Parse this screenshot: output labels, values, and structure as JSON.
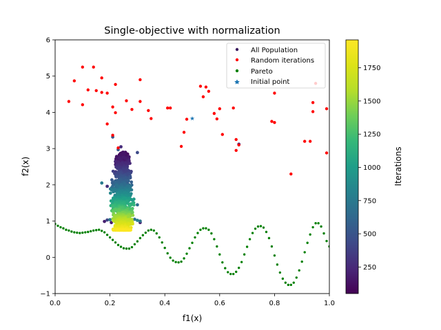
{
  "chart_data": {
    "type": "scatter",
    "title": "Single-objective with normalization",
    "xlabel": "f1(x)",
    "ylabel": "f2(x)",
    "xlim": [
      0,
      1
    ],
    "ylim": [
      -1,
      6
    ],
    "xticks": [
      "0.0",
      "0.2",
      "0.4",
      "0.6",
      "0.8",
      "1.0"
    ],
    "yticks": [
      "−1",
      "0",
      "1",
      "2",
      "3",
      "4",
      "5",
      "6"
    ],
    "grid": false,
    "legend_position": "top-right",
    "legend": [
      "All Population",
      "Random iterations",
      "Pareto",
      "Initial point"
    ],
    "colorbar": {
      "label": "Iterations",
      "range": [
        50,
        1960
      ],
      "ticks": [
        "250",
        "500",
        "750",
        "1000",
        "1250",
        "1500",
        "1750"
      ],
      "colormap": "viridis"
    },
    "series": [
      {
        "name": "Random iterations",
        "color": "#ff0000",
        "marker": "dot",
        "points": [
          [
            0.05,
            4.3
          ],
          [
            0.07,
            4.87
          ],
          [
            0.1,
            4.21
          ],
          [
            0.1,
            5.25
          ],
          [
            0.12,
            4.62
          ],
          [
            0.14,
            5.25
          ],
          [
            0.15,
            4.6
          ],
          [
            0.17,
            4.55
          ],
          [
            0.17,
            4.95
          ],
          [
            0.19,
            3.68
          ],
          [
            0.19,
            4.53
          ],
          [
            0.21,
            4.15
          ],
          [
            0.21,
            3.37
          ],
          [
            0.22,
            3.99
          ],
          [
            0.22,
            4.77
          ],
          [
            0.23,
            3.02
          ],
          [
            0.26,
            4.32
          ],
          [
            0.28,
            4.08
          ],
          [
            0.31,
            4.3
          ],
          [
            0.31,
            4.9
          ],
          [
            0.34,
            4.05
          ],
          [
            0.35,
            3.83
          ],
          [
            0.41,
            4.12
          ],
          [
            0.42,
            4.12
          ],
          [
            0.46,
            3.06
          ],
          [
            0.47,
            3.45
          ],
          [
            0.48,
            3.81
          ],
          [
            0.53,
            4.72
          ],
          [
            0.54,
            4.43
          ],
          [
            0.55,
            4.7
          ],
          [
            0.56,
            4.58
          ],
          [
            0.58,
            3.97
          ],
          [
            0.59,
            3.82
          ],
          [
            0.6,
            4.1
          ],
          [
            0.61,
            3.39
          ],
          [
            0.65,
            4.12
          ],
          [
            0.66,
            3.25
          ],
          [
            0.66,
            2.95
          ],
          [
            0.67,
            3.1
          ],
          [
            0.79,
            3.75
          ],
          [
            0.8,
            3.72
          ],
          [
            0.8,
            4.53
          ],
          [
            0.86,
            2.3
          ],
          [
            0.91,
            3.2
          ],
          [
            0.93,
            3.2
          ],
          [
            0.94,
            4.27
          ],
          [
            0.94,
            4.02
          ],
          [
            0.95,
            4.8
          ],
          [
            0.99,
            4.1
          ],
          [
            0.99,
            2.88
          ]
        ]
      },
      {
        "name": "Pareto",
        "color": "#008000",
        "marker": "dot",
        "points": [
          [
            0.0,
            0.92
          ],
          [
            0.01,
            0.87
          ],
          [
            0.02,
            0.83
          ],
          [
            0.03,
            0.8
          ],
          [
            0.04,
            0.76
          ],
          [
            0.05,
            0.74
          ],
          [
            0.06,
            0.71
          ],
          [
            0.07,
            0.69
          ],
          [
            0.08,
            0.68
          ],
          [
            0.09,
            0.67
          ],
          [
            0.1,
            0.68
          ],
          [
            0.11,
            0.69
          ],
          [
            0.12,
            0.7
          ],
          [
            0.13,
            0.72
          ],
          [
            0.14,
            0.74
          ],
          [
            0.15,
            0.75
          ],
          [
            0.16,
            0.76
          ],
          [
            0.17,
            0.73
          ],
          [
            0.18,
            0.69
          ],
          [
            0.19,
            0.62
          ],
          [
            0.2,
            0.55
          ],
          [
            0.21,
            0.48
          ],
          [
            0.22,
            0.41
          ],
          [
            0.23,
            0.34
          ],
          [
            0.24,
            0.29
          ],
          [
            0.25,
            0.25
          ],
          [
            0.26,
            0.24
          ],
          [
            0.27,
            0.24
          ],
          [
            0.28,
            0.28
          ],
          [
            0.29,
            0.36
          ],
          [
            0.3,
            0.44
          ],
          [
            0.31,
            0.53
          ],
          [
            0.32,
            0.61
          ],
          [
            0.33,
            0.68
          ],
          [
            0.34,
            0.74
          ],
          [
            0.35,
            0.76
          ],
          [
            0.36,
            0.74
          ],
          [
            0.37,
            0.66
          ],
          [
            0.38,
            0.55
          ],
          [
            0.39,
            0.41
          ],
          [
            0.4,
            0.26
          ],
          [
            0.41,
            0.11
          ],
          [
            0.42,
            -0.01
          ],
          [
            0.43,
            -0.09
          ],
          [
            0.44,
            -0.13
          ],
          [
            0.45,
            -0.14
          ],
          [
            0.46,
            -0.12
          ],
          [
            0.47,
            -0.03
          ],
          [
            0.48,
            0.1
          ],
          [
            0.49,
            0.25
          ],
          [
            0.5,
            0.4
          ],
          [
            0.51,
            0.55
          ],
          [
            0.52,
            0.67
          ],
          [
            0.53,
            0.76
          ],
          [
            0.54,
            0.8
          ],
          [
            0.55,
            0.8
          ],
          [
            0.56,
            0.76
          ],
          [
            0.57,
            0.66
          ],
          [
            0.58,
            0.5
          ],
          [
            0.59,
            0.3
          ],
          [
            0.6,
            0.08
          ],
          [
            0.61,
            -0.14
          ],
          [
            0.62,
            -0.3
          ],
          [
            0.63,
            -0.41
          ],
          [
            0.64,
            -0.46
          ],
          [
            0.65,
            -0.46
          ],
          [
            0.66,
            -0.4
          ],
          [
            0.67,
            -0.29
          ],
          [
            0.68,
            -0.13
          ],
          [
            0.69,
            0.08
          ],
          [
            0.7,
            0.29
          ],
          [
            0.71,
            0.5
          ],
          [
            0.72,
            0.67
          ],
          [
            0.73,
            0.79
          ],
          [
            0.74,
            0.85
          ],
          [
            0.75,
            0.86
          ],
          [
            0.76,
            0.82
          ],
          [
            0.77,
            0.7
          ],
          [
            0.78,
            0.53
          ],
          [
            0.79,
            0.3
          ],
          [
            0.8,
            0.05
          ],
          [
            0.81,
            -0.2
          ],
          [
            0.82,
            -0.42
          ],
          [
            0.83,
            -0.59
          ],
          [
            0.84,
            -0.7
          ],
          [
            0.85,
            -0.76
          ],
          [
            0.86,
            -0.76
          ],
          [
            0.87,
            -0.7
          ],
          [
            0.88,
            -0.56
          ],
          [
            0.89,
            -0.36
          ],
          [
            0.9,
            -0.12
          ],
          [
            0.91,
            0.14
          ],
          [
            0.92,
            0.4
          ],
          [
            0.93,
            0.63
          ],
          [
            0.94,
            0.83
          ],
          [
            0.95,
            0.94
          ],
          [
            0.96,
            0.94
          ],
          [
            0.97,
            0.85
          ],
          [
            0.98,
            0.66
          ],
          [
            0.99,
            0.45
          ],
          [
            1.0,
            0.3
          ]
        ]
      },
      {
        "name": "All Population",
        "marker": "dot",
        "color_by": "iteration",
        "points": [
          [
            0.21,
            3.32
          ],
          [
            0.24,
            3.05
          ],
          [
            0.23,
            2.97
          ],
          [
            0.3,
            2.89
          ],
          [
            0.67,
            3.12
          ],
          [
            0.17,
            2.05
          ],
          [
            0.26,
            2.04
          ],
          [
            0.19,
            1.96
          ],
          [
            0.3,
            1.45
          ],
          [
            0.21,
            1.3
          ],
          [
            0.22,
            1.15
          ],
          [
            0.28,
            1.2
          ],
          [
            0.18,
            0.99
          ],
          [
            0.19,
            1.03
          ],
          [
            0.2,
            1.04
          ],
          [
            0.29,
            1.05
          ],
          [
            0.3,
            1.02
          ],
          [
            0.31,
            1.0
          ],
          [
            0.205,
            0.96
          ],
          [
            0.31,
            0.96
          ]
        ],
        "cluster": {
          "x_center": 0.245,
          "x_spread": 0.035,
          "y_range": [
            0.75,
            2.9
          ],
          "iteration_range": [
            50,
            1960
          ]
        }
      },
      {
        "name": "Initial point",
        "color": "#1f77b4",
        "marker": "star",
        "points": [
          [
            0.5,
            3.83
          ]
        ]
      }
    ]
  }
}
